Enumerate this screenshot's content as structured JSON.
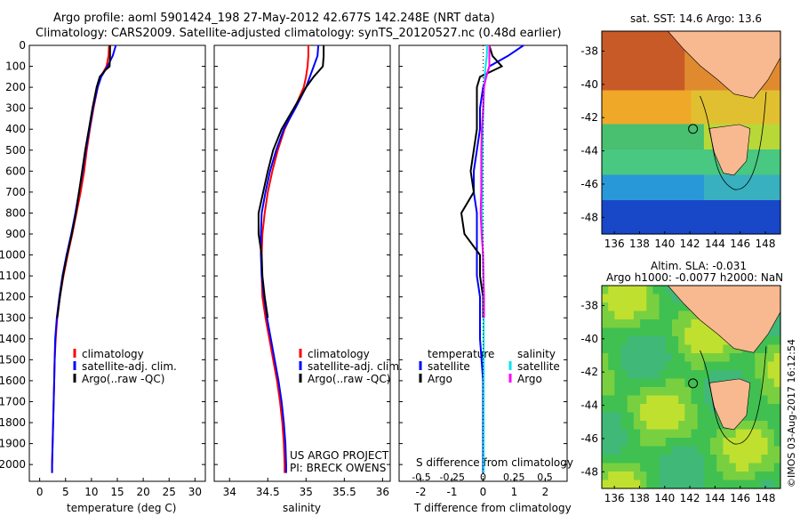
{
  "titles": {
    "line1": "Argo profile: aoml 5901424_198 27-May-2012 42.677S 142.248E (NRT data)",
    "line2": "Climatology: CARS2009. Satellite-adjusted climatology: synTS_20120527.nc (0.48d earlier)",
    "map_top": "sat. SST: 14.6 Argo: 13.6",
    "map_bottom_1": "Altim. SLA: -0.031",
    "map_bottom_2": "Argo h1000: -0.0077 h2000: NaN",
    "credit": "©IMOS 03-Aug-2017 16:12:54",
    "project_1": "US ARGO PROJECT",
    "project_2": "PI: BRECK OWENS"
  },
  "legend_profiles": [
    {
      "label": "climatology",
      "color": "#ff0000"
    },
    {
      "label": "satellite-adj. clim.",
      "color": "#0000ff"
    },
    {
      "label": "Argo(..raw -QC)",
      "color": "#000000"
    }
  ],
  "legend_diff": {
    "temp_header": "temperature",
    "sal_header": "salinity",
    "temp_items": [
      {
        "label": "satellite",
        "color": "#0000ff"
      },
      {
        "label": "Argo",
        "color": "#000000"
      }
    ],
    "sal_items": [
      {
        "label": "satellite",
        "color": "#00e5ee"
      },
      {
        "label": "Argo",
        "color": "#ff00ff"
      }
    ]
  },
  "chart_data": [
    {
      "type": "line",
      "xlabel": "temperature (deg C)",
      "ylabel": "",
      "xlim": [
        -2,
        32
      ],
      "ylim": [
        2080,
        0
      ],
      "xticks": [
        0,
        5,
        10,
        15,
        20,
        25,
        30
      ],
      "yticks": [
        0,
        100,
        200,
        300,
        400,
        500,
        600,
        700,
        800,
        900,
        1000,
        1100,
        1200,
        1300,
        1400,
        1500,
        1600,
        1700,
        1800,
        1900,
        2000
      ],
      "series": [
        {
          "name": "climatology",
          "color": "#ff0000",
          "depth": [
            0,
            50,
            100,
            150,
            200,
            300,
            400,
            500,
            600,
            700,
            800,
            900,
            1000,
            1100,
            1200,
            1300,
            1400,
            1500,
            1600,
            1700,
            1800,
            1900,
            2000,
            2040
          ],
          "values": [
            13.4,
            13.3,
            12.9,
            11.8,
            11.2,
            10.4,
            9.7,
            9.1,
            8.6,
            7.9,
            7.1,
            6.3,
            5.4,
            4.6,
            3.9,
            3.4,
            3.1,
            2.9,
            2.8,
            2.7,
            2.6,
            2.5,
            2.4,
            2.4
          ]
        },
        {
          "name": "satellite-adj. clim.",
          "color": "#0000ff",
          "depth": [
            0,
            50,
            100,
            150,
            200,
            300,
            400,
            500,
            600,
            700,
            800,
            900,
            1000,
            1100,
            1200,
            1300,
            1400,
            1500,
            1600,
            1700,
            1800,
            1900,
            2000,
            2040
          ],
          "values": [
            14.7,
            14.1,
            13.1,
            11.9,
            11.2,
            10.3,
            9.6,
            8.9,
            8.3,
            7.6,
            6.9,
            6.1,
            5.2,
            4.4,
            3.8,
            3.3,
            3.0,
            2.9,
            2.8,
            2.7,
            2.6,
            2.5,
            2.4,
            2.4
          ]
        },
        {
          "name": "Argo(..raw -QC)",
          "color": "#000000",
          "depth": [
            0,
            50,
            100,
            120,
            150,
            200,
            300,
            400,
            500,
            600,
            700,
            800,
            900,
            1000,
            1100,
            1200,
            1300
          ],
          "values": [
            13.6,
            13.6,
            13.5,
            12.6,
            11.6,
            11.0,
            10.2,
            9.5,
            8.8,
            8.2,
            7.6,
            7.0,
            6.2,
            5.3,
            4.5,
            3.9,
            3.4
          ]
        }
      ]
    },
    {
      "type": "line",
      "xlabel": "salinity",
      "ylabel": "",
      "xlim": [
        33.8,
        36.1
      ],
      "ylim": [
        2080,
        0
      ],
      "xticks": [
        34,
        34.5,
        35,
        35.5,
        36
      ],
      "xticklabels": [
        "34",
        "34.5",
        "35",
        "35.5",
        "36"
      ],
      "series": [
        {
          "name": "climatology",
          "color": "#ff0000",
          "depth": [
            0,
            50,
            100,
            150,
            200,
            300,
            400,
            500,
            600,
            700,
            800,
            900,
            1000,
            1100,
            1200,
            1300,
            1400,
            1500,
            1600,
            1700,
            1800,
            1900,
            2000,
            2040
          ],
          "values": [
            35.03,
            35.03,
            35.02,
            35.0,
            34.97,
            34.85,
            34.72,
            34.63,
            34.56,
            34.5,
            34.46,
            34.43,
            34.42,
            34.42,
            34.43,
            34.47,
            34.52,
            34.57,
            34.62,
            34.66,
            34.69,
            34.71,
            34.72,
            34.72
          ]
        },
        {
          "name": "satellite-adj. clim.",
          "color": "#0000ff",
          "depth": [
            0,
            50,
            100,
            150,
            200,
            300,
            400,
            500,
            600,
            700,
            800,
            900,
            1000,
            1100,
            1200,
            1300,
            1400,
            1500,
            1600,
            1700,
            1800,
            1900,
            2000,
            2040
          ],
          "values": [
            35.16,
            35.15,
            35.1,
            35.05,
            35.0,
            34.86,
            34.71,
            34.61,
            34.53,
            34.47,
            34.42,
            34.41,
            34.41,
            34.42,
            34.45,
            34.49,
            34.54,
            34.59,
            34.64,
            34.68,
            34.71,
            34.73,
            34.74,
            34.74
          ]
        },
        {
          "name": "Argo(..raw -QC)",
          "color": "#000000",
          "depth": [
            0,
            50,
            100,
            150,
            200,
            300,
            400,
            500,
            600,
            700,
            800,
            900,
            1000,
            1100,
            1200,
            1300
          ],
          "values": [
            35.23,
            35.23,
            35.22,
            35.1,
            35.0,
            34.84,
            34.68,
            34.57,
            34.5,
            34.44,
            34.38,
            34.38,
            34.42,
            34.43,
            34.46,
            34.5
          ]
        }
      ]
    },
    {
      "type": "line",
      "xlabel": "T difference from climatology",
      "xlabel2": "S difference from climatology",
      "ylabel": "",
      "xlim": [
        -2.7,
        2.7
      ],
      "ylim": [
        2080,
        0
      ],
      "xticks": [
        -2,
        -1,
        0,
        1,
        2
      ],
      "xticks_s": [
        -0.5,
        -0.25,
        0,
        0.25,
        0.5
      ],
      "xticklabels_s": [
        "-0.5",
        "-0.25",
        "0",
        "0.25",
        "0.5"
      ],
      "series": [
        {
          "name": "temperature satellite",
          "color": "#0000ff",
          "depth": [
            0,
            50,
            100,
            150,
            200,
            300,
            400,
            500,
            600,
            700,
            800,
            900,
            1000,
            1100,
            1200,
            1300,
            1400,
            1600,
            1800,
            2000,
            2040
          ],
          "values": [
            1.3,
            0.8,
            0.2,
            0.1,
            0.0,
            -0.1,
            -0.1,
            -0.2,
            -0.3,
            -0.3,
            -0.2,
            -0.2,
            -0.2,
            -0.2,
            -0.1,
            -0.1,
            -0.1,
            0.0,
            0.0,
            0.0,
            0.0
          ]
        },
        {
          "name": "temperature Argo",
          "color": "#000000",
          "depth": [
            0,
            50,
            100,
            150,
            200,
            300,
            400,
            500,
            600,
            700,
            800,
            900,
            1000,
            1100,
            1200,
            1300
          ],
          "values": [
            0.2,
            0.3,
            0.6,
            -0.1,
            -0.2,
            -0.2,
            -0.2,
            -0.3,
            -0.4,
            -0.3,
            -0.7,
            -0.6,
            -0.1,
            -0.1,
            0.0,
            0.0
          ]
        },
        {
          "name": "salinity satellite",
          "color": "#00e5ee",
          "depth": [
            0,
            50,
            100,
            150,
            200,
            300,
            400,
            500,
            600,
            700,
            800,
            900,
            1000,
            1100,
            1200,
            1300,
            1400,
            1600,
            1800,
            2000,
            2040
          ],
          "values": [
            0.13,
            0.12,
            0.08,
            0.05,
            0.03,
            0.01,
            -0.01,
            -0.02,
            -0.03,
            -0.03,
            -0.04,
            -0.02,
            -0.01,
            0.0,
            0.02,
            0.02,
            0.02,
            0.02,
            0.02,
            0.02,
            0.02
          ]
        },
        {
          "name": "salinity Argo",
          "color": "#ff00ff",
          "depth": [
            0,
            50,
            100,
            150,
            200,
            300,
            400,
            500,
            600,
            700,
            800,
            900,
            1000,
            1100,
            1200,
            1300
          ],
          "values": [
            0.2,
            0.2,
            0.2,
            0.1,
            0.03,
            0.0,
            -0.04,
            -0.06,
            -0.06,
            -0.06,
            -0.08,
            -0.05,
            0.0,
            0.01,
            0.03,
            0.03
          ]
        }
      ]
    },
    {
      "type": "heatmap",
      "title": "sat. SST: 14.6 Argo: 13.6",
      "xticks": [
        136,
        138,
        140,
        142,
        144,
        146,
        148
      ],
      "yticks": [
        -38,
        -40,
        -42,
        -44,
        -46,
        -48
      ],
      "xlim": [
        135,
        149.2
      ],
      "ylim": [
        -49,
        -36.8
      ],
      "argo_position": [
        142.25,
        -42.68
      ]
    },
    {
      "type": "heatmap",
      "title": "Altim. SLA: -0.031",
      "xticks": [
        136,
        138,
        140,
        142,
        144,
        146,
        148
      ],
      "yticks": [
        -38,
        -40,
        -42,
        -44,
        -46,
        -48
      ],
      "xlim": [
        135,
        149.2
      ],
      "ylim": [
        -49,
        -36.8
      ],
      "argo_position": [
        142.25,
        -42.68
      ]
    }
  ]
}
